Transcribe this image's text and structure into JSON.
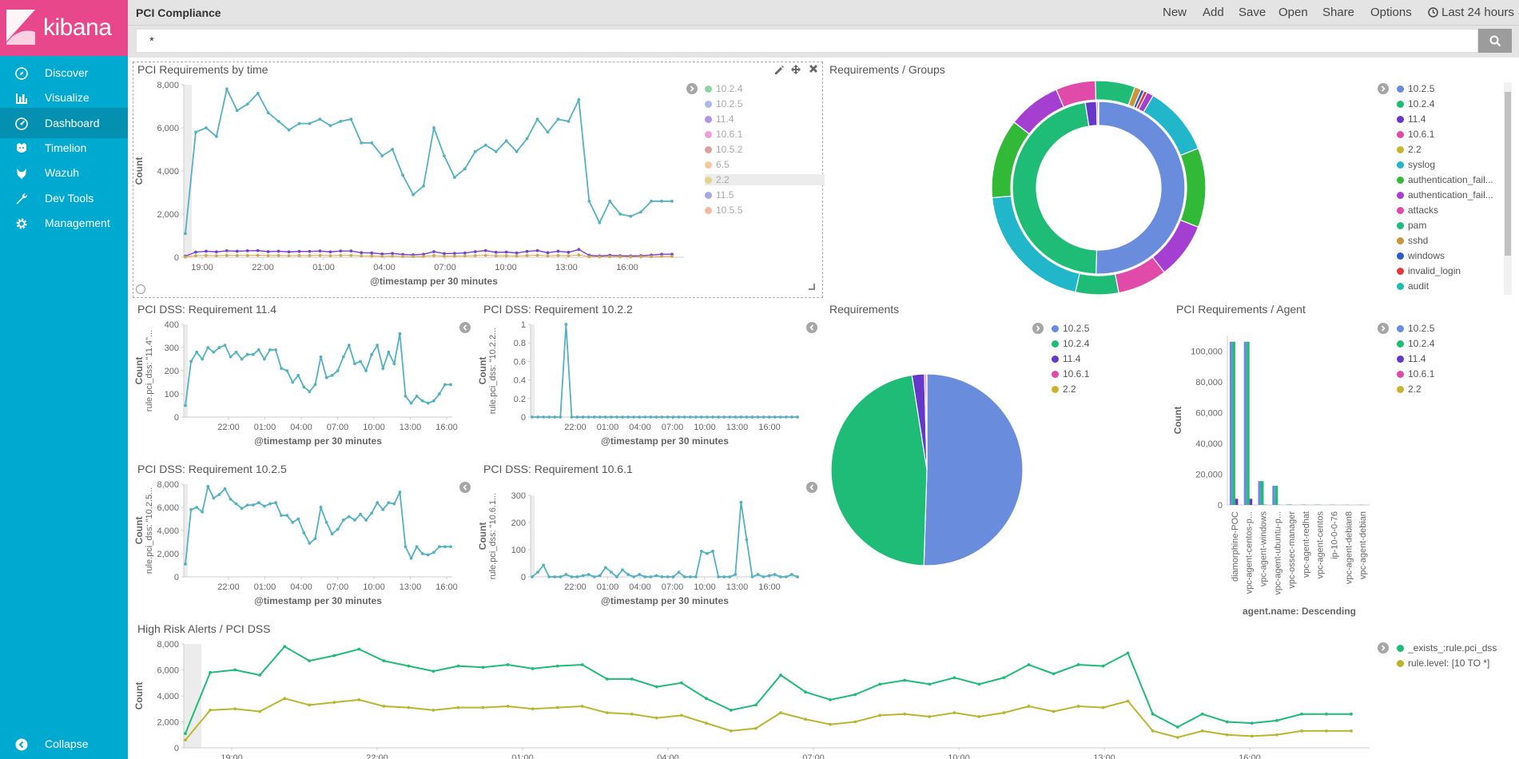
{
  "app": {
    "brand": "kibana"
  },
  "sidebar": {
    "items": [
      {
        "label": "Discover",
        "icon": "compass-icon"
      },
      {
        "label": "Visualize",
        "icon": "bar-chart-icon"
      },
      {
        "label": "Dashboard",
        "icon": "dashboard-icon",
        "active": true
      },
      {
        "label": "Timelion",
        "icon": "timelion-icon"
      },
      {
        "label": "Wazuh",
        "icon": "wazuh-icon"
      },
      {
        "label": "Dev Tools",
        "icon": "wrench-icon"
      },
      {
        "label": "Management",
        "icon": "gear-icon"
      }
    ],
    "collapse_label": "Collapse"
  },
  "topbar": {
    "title": "PCI Compliance",
    "actions": [
      "New",
      "Add",
      "Save",
      "Open",
      "Share",
      "Options"
    ],
    "time_label": "Last 24 hours"
  },
  "search": {
    "value": "*"
  },
  "colors": {
    "teal": "#54b1c1",
    "green": "#1ebc76",
    "purple": "#7a3fd1",
    "blue": "#6a8cdc",
    "olive": "#b9b62e",
    "brand": "#e8488b",
    "sidebar": "#00a9d0"
  },
  "panels": {
    "by_time": {
      "title": "PCI Requirements by time",
      "ylabel": "Count",
      "xlabel": "@timestamp per 30 minutes",
      "yticks": [
        "8,000",
        "6,000",
        "4,000",
        "2,000",
        "0"
      ],
      "xticks": [
        "19:00",
        "22:00",
        "01:00",
        "04:00",
        "07:00",
        "10:00",
        "13:00",
        "16:00"
      ],
      "legend": [
        "10.2.4",
        "10.2.5",
        "11.4",
        "10.6.1",
        "10.5.2",
        "6.5",
        "2.2",
        "11.5",
        "10.5.5"
      ],
      "legend_colors": [
        "#8fd3a8",
        "#a9b9e8",
        "#b494e0",
        "#eea0d0",
        "#d9a0a0",
        "#f3c9a0",
        "#e2d48a",
        "#a3a8e0",
        "#f0b8a0"
      ]
    },
    "groups": {
      "title": "Requirements / Groups",
      "legend": [
        "10.2.5",
        "10.2.4",
        "11.4",
        "10.6.1",
        "2.2",
        "syslog",
        "authentication_fail...",
        "authentication_fail...",
        "attacks",
        "pam",
        "sshd",
        "windows",
        "invalid_login",
        "audit"
      ],
      "legend_colors": [
        "#6a8cdc",
        "#1ebc76",
        "#6638c9",
        "#e04aa8",
        "#c9b42e",
        "#21b6c9",
        "#33b938",
        "#a53fd1",
        "#e04aa8",
        "#1ebc76",
        "#c9953a",
        "#2a5cc9",
        "#e03a3a",
        "#21bcae"
      ]
    },
    "req114": {
      "title": "PCI DSS: Requirement 11.4",
      "ylabel": "Count",
      "ylabel2": "rule.pci_dss: \"11.4\"...",
      "yticks": [
        "400",
        "300",
        "200",
        "100",
        "0"
      ],
      "xticks": [
        "22:00",
        "01:00",
        "04:00",
        "07:00",
        "10:00",
        "13:00",
        "16:00"
      ],
      "xlabel": "@timestamp per 30 minutes"
    },
    "req1022": {
      "title": "PCI DSS: Requirement 10.2.2",
      "ylabel": "Count",
      "ylabel2": "rule.pci_dss: \"10.2.2...",
      "yticks": [
        "1",
        "0.8",
        "0.6",
        "0.4",
        "0.2",
        "0"
      ],
      "xticks": [
        "22:00",
        "01:00",
        "04:00",
        "07:00",
        "10:00",
        "13:00",
        "16:00"
      ],
      "xlabel": "@timestamp per 30 minutes"
    },
    "req1025": {
      "title": "PCI DSS: Requirement 10.2.5",
      "ylabel": "Count",
      "ylabel2": "rule.pci_dss: \"10.2.5...",
      "yticks": [
        "8,000",
        "6,000",
        "4,000",
        "2,000",
        "0"
      ],
      "xticks": [
        "22:00",
        "01:00",
        "04:00",
        "07:00",
        "10:00",
        "13:00",
        "16:00"
      ],
      "xlabel": "@timestamp per 30 minutes"
    },
    "req1061": {
      "title": "PCI DSS: Requirement 10.6.1",
      "ylabel": "Count",
      "ylabel2": "rule.pci_dss: \"10.6.1...",
      "yticks": [
        "300",
        "200",
        "100",
        "0"
      ],
      "xticks": [
        "22:00",
        "01:00",
        "04:00",
        "07:00",
        "10:00",
        "13:00",
        "16:00"
      ],
      "xlabel": "@timestamp per 30 minutes"
    },
    "requirements": {
      "title": "Requirements",
      "legend": [
        "10.2.5",
        "10.2.4",
        "11.4",
        "10.6.1",
        "2.2"
      ],
      "legend_colors": [
        "#6a8cdc",
        "#1ebc76",
        "#6638c9",
        "#e04aa8",
        "#c9b42e"
      ]
    },
    "agent": {
      "title": "PCI Requirements / Agent",
      "ylabel": "Count",
      "xlabel": "agent.name: Descending",
      "yticks": [
        "100,000",
        "80,000",
        "60,000",
        "40,000",
        "20,000",
        "0"
      ],
      "agents": [
        "diamorphine-POC",
        "vpc-agent-centos-p...",
        "vpc-agent-windows",
        "vpc-agent-ubuntu-p...",
        "vpc-ossec-manager",
        "vpc-agent-redhat",
        "vpc-agent-centos",
        "ip-10-0-0-76",
        "vpc-agent-debian8",
        "vpc-agent-debian"
      ],
      "legend": [
        "10.2.5",
        "10.2.4",
        "11.4",
        "10.6.1",
        "2.2"
      ],
      "legend_colors": [
        "#6a8cdc",
        "#1ebc76",
        "#6638c9",
        "#e04aa8",
        "#c9b42e"
      ]
    },
    "high_risk": {
      "title": "High Risk Alerts / PCI DSS",
      "ylabel": "Count",
      "yticks": [
        "8,000",
        "6,000",
        "4,000",
        "2,000",
        "0"
      ],
      "xticks": [
        "19:00",
        "22:00",
        "01:00",
        "04:00",
        "07:00",
        "10:00",
        "13:00",
        "16:00"
      ],
      "legend": [
        "_exists_:rule.pci_dss",
        "rule.level: [10 TO *]"
      ],
      "legend_colors": [
        "#1ebc76",
        "#b9b62e"
      ]
    }
  },
  "chart_data": [
    {
      "type": "line",
      "title": "PCI Requirements by time",
      "xlabel": "@timestamp per 30 minutes",
      "ylabel": "Count",
      "ylim": [
        0,
        8000
      ],
      "series": [
        {
          "name": "10.2.4",
          "values": [
            1100,
            5800,
            6000,
            5600,
            7800,
            6800,
            7100,
            7600,
            6700,
            6300,
            5900,
            6200,
            6200,
            6400,
            6100,
            6300,
            6400,
            5300,
            5300,
            4700,
            5000,
            3800,
            2900,
            3300,
            6000,
            4700,
            3700,
            4100,
            4900,
            5200,
            4900,
            5400,
            4900,
            5500,
            6400,
            5800,
            6400,
            6300,
            7300,
            2600,
            1600,
            2600,
            2000,
            1900,
            2100,
            2600,
            2600,
            2600
          ]
        },
        {
          "name": "11.4",
          "values": [
            50,
            240,
            280,
            250,
            300,
            280,
            300,
            310,
            260,
            280,
            250,
            270,
            270,
            290,
            250,
            290,
            290,
            210,
            200,
            150,
            180,
            130,
            110,
            140,
            260,
            170,
            180,
            200,
            260,
            310,
            230,
            240,
            200,
            270,
            310,
            210,
            280,
            230,
            360,
            90,
            60,
            90,
            70,
            60,
            70,
            100,
            140,
            140
          ]
        }
      ]
    },
    {
      "type": "pie",
      "title": "Requirements",
      "categories": [
        "10.2.5",
        "10.2.4",
        "11.4",
        "10.6.1",
        "2.2"
      ],
      "values": [
        50.5,
        47.0,
        2.1,
        0.3,
        0.1
      ]
    },
    {
      "type": "bar",
      "title": "PCI Requirements / Agent",
      "categories": [
        "diamorphine-POC",
        "vpc-agent-centos-p...",
        "vpc-agent-windows",
        "vpc-agent-ubuntu-p...",
        "vpc-ossec-manager",
        "vpc-agent-redhat",
        "vpc-agent-centos",
        "ip-10-0-0-76",
        "vpc-agent-debian8",
        "vpc-agent-debian"
      ],
      "series": [
        {
          "name": "10.2.5",
          "values": [
            106000,
            106000,
            15500,
            12500,
            300,
            200,
            200,
            150,
            100,
            100
          ]
        },
        {
          "name": "10.2.4",
          "values": [
            106000,
            106000,
            15500,
            12500,
            300,
            200,
            200,
            150,
            100,
            100
          ]
        },
        {
          "name": "11.4",
          "values": [
            4000,
            4000,
            200,
            100,
            0,
            0,
            0,
            0,
            0,
            0
          ]
        }
      ],
      "ylim": [
        0,
        110000
      ],
      "xlabel": "agent.name: Descending",
      "ylabel": "Count"
    },
    {
      "type": "line",
      "title": "High Risk Alerts / PCI DSS",
      "ylabel": "Count",
      "ylim": [
        0,
        8000
      ],
      "series": [
        {
          "name": "_exists_:rule.pci_dss",
          "values": [
            1100,
            5800,
            6000,
            5600,
            7800,
            6700,
            7100,
            7600,
            6700,
            6300,
            5900,
            6300,
            6200,
            6400,
            6100,
            6300,
            6400,
            5300,
            5300,
            4700,
            5000,
            3800,
            2900,
            3300,
            5600,
            4300,
            3700,
            4100,
            4900,
            5200,
            4900,
            5400,
            4900,
            5400,
            6400,
            5700,
            6400,
            6300,
            7300,
            2600,
            1600,
            2600,
            2000,
            1900,
            2100,
            2600,
            2600,
            2600
          ]
        },
        {
          "name": "rule.level: [10 TO *]",
          "values": [
            600,
            2900,
            3000,
            2800,
            3800,
            3300,
            3500,
            3700,
            3200,
            3100,
            2900,
            3100,
            3100,
            3200,
            3000,
            3100,
            3200,
            2700,
            2600,
            2300,
            2500,
            1900,
            1300,
            1500,
            2700,
            2200,
            1800,
            2000,
            2500,
            2600,
            2400,
            2700,
            2400,
            2700,
            3200,
            2800,
            3200,
            3100,
            3600,
            1300,
            800,
            1300,
            1000,
            900,
            1000,
            1300,
            1300,
            1300
          ]
        }
      ]
    }
  ]
}
